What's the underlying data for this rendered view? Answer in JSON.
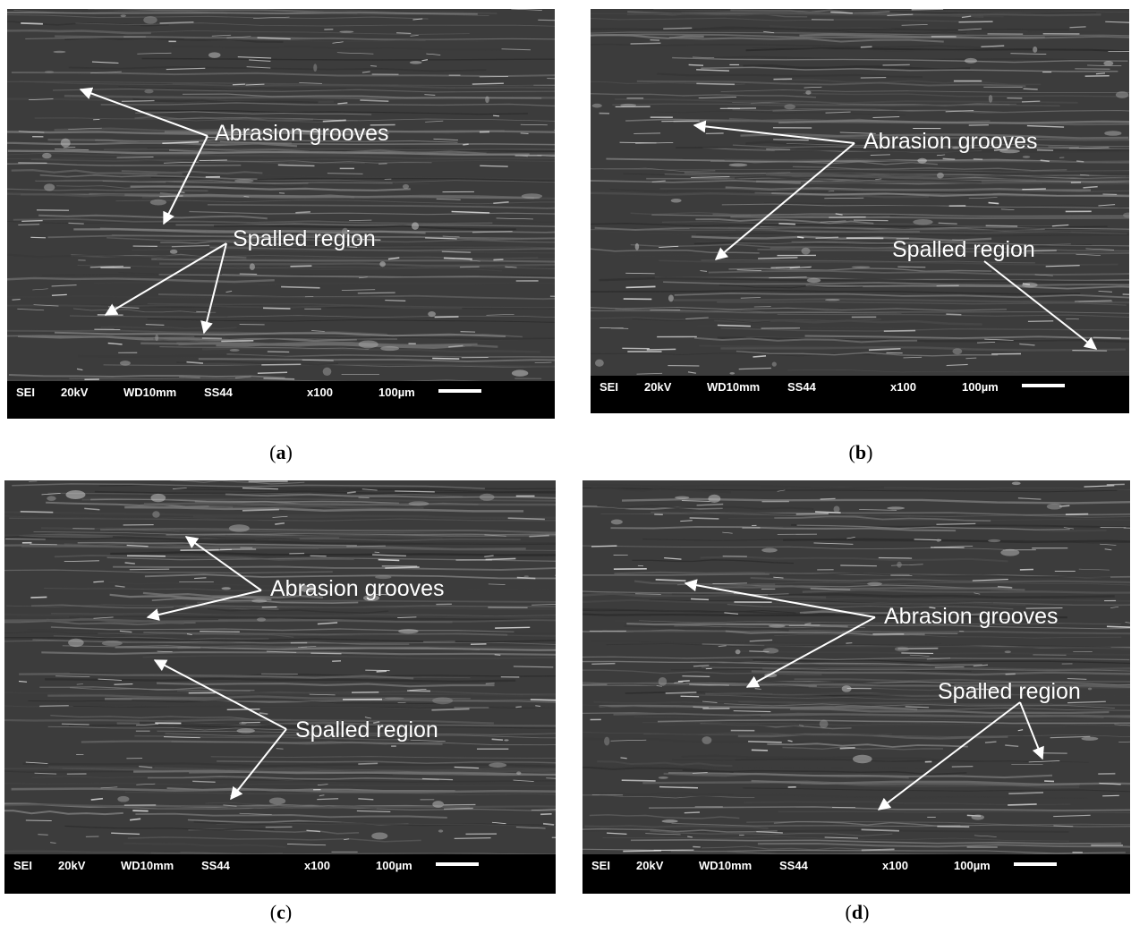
{
  "panels": [
    {
      "caption": [
        "(",
        "a",
        ")"
      ],
      "info_bar": [
        "SEI",
        "20kV",
        "WD10mm",
        "SS44",
        "x100",
        "100µm"
      ],
      "annotations": [
        "Abrasion grooves",
        "Spalled region"
      ]
    },
    {
      "caption": [
        "(",
        "b",
        ")"
      ],
      "info_bar": [
        "SEI",
        "20kV",
        "WD10mm",
        "SS44",
        "x100",
        "100µm"
      ],
      "annotations": [
        "Abrasion grooves",
        "Spalled region"
      ]
    },
    {
      "caption": [
        "(",
        "c",
        ")"
      ],
      "info_bar": [
        "SEI",
        "20kV",
        "WD10mm",
        "SS44",
        "x100",
        "100µm"
      ],
      "annotations": [
        "Abrasion grooves",
        "Spalled region"
      ]
    },
    {
      "caption": [
        "(",
        "d",
        ")"
      ],
      "info_bar": [
        "SEI",
        "20kV",
        "WD10mm",
        "SS44",
        "x100",
        "100µm"
      ],
      "annotations": [
        "Abrasion grooves",
        "Spalled region"
      ]
    }
  ]
}
